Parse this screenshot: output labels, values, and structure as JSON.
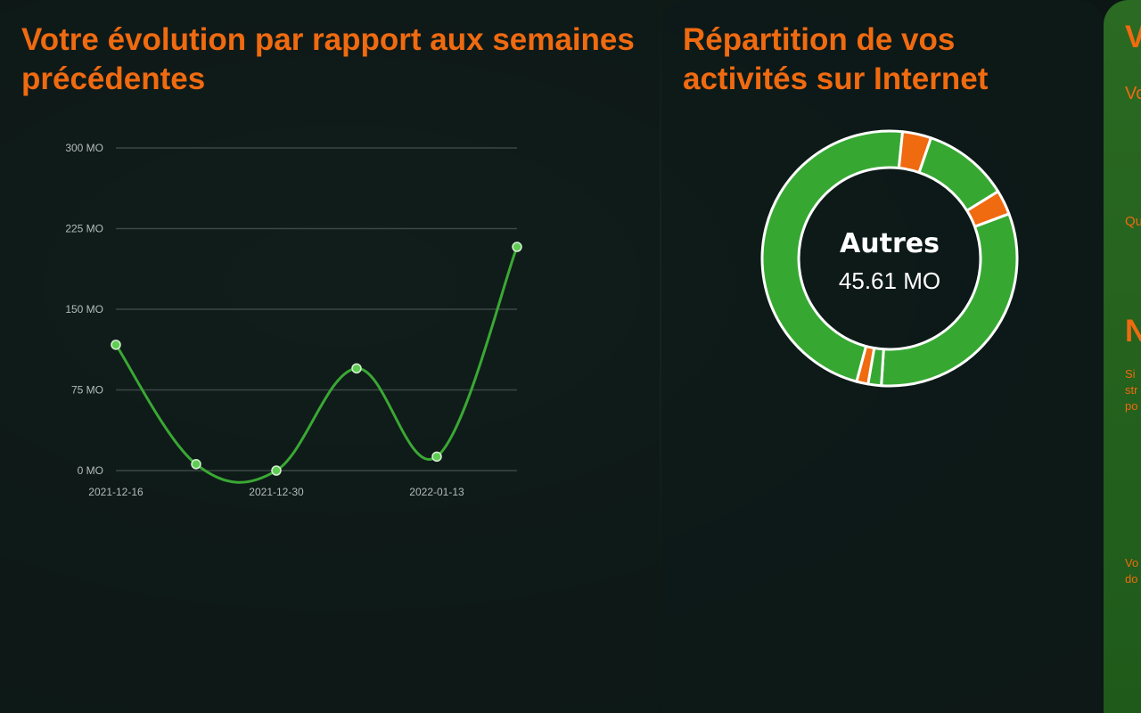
{
  "panel1": {
    "title": "Votre évolution par rapport aux semaines précédentes"
  },
  "panel2": {
    "title": "Répartition de vos activités sur Internet",
    "center_label": "Autres",
    "center_value": "45.61 MO"
  },
  "panel3": {
    "title_partial": "V",
    "line1_partial": "Vo",
    "line2_partial": "Qu",
    "heading_partial": "N",
    "para_lines": [
      "Si",
      "str",
      "po"
    ],
    "footer_lines": [
      "Vo",
      "do"
    ]
  },
  "colors": {
    "accent": "#f06a10",
    "line": "#3aa834",
    "donut_green": "#36a832",
    "donut_orange": "#f06a10"
  },
  "chart_data": [
    {
      "type": "line",
      "title": "",
      "x": [
        "2021-12-16",
        "2021-12-23",
        "2021-12-30",
        "2022-01-06",
        "2022-01-13",
        "2022-01-20"
      ],
      "x_tick_labels": [
        "2021-12-16",
        "2021-12-30",
        "2022-01-13"
      ],
      "series": [
        {
          "values": [
            117,
            6,
            0,
            95,
            13,
            208
          ]
        }
      ],
      "y_ticks": [
        "0 MO",
        "75 MO",
        "150 MO",
        "225 MO",
        "300 MO"
      ],
      "ylim": [
        0,
        300
      ],
      "grid": true
    },
    {
      "type": "pie",
      "subtype": "donut",
      "slices": [
        {
          "value": 45.61,
          "color": "#36a832",
          "label": "Autres"
        },
        {
          "value": 3.5,
          "color": "#f06a10"
        },
        {
          "value": 10.5,
          "color": "#36a832"
        },
        {
          "value": 3.0,
          "color": "#f06a10"
        },
        {
          "value": 30.5,
          "color": "#36a832"
        },
        {
          "value": 1.6,
          "color": "#36a832"
        },
        {
          "value": 1.4,
          "color": "#f06a10"
        }
      ]
    }
  ]
}
